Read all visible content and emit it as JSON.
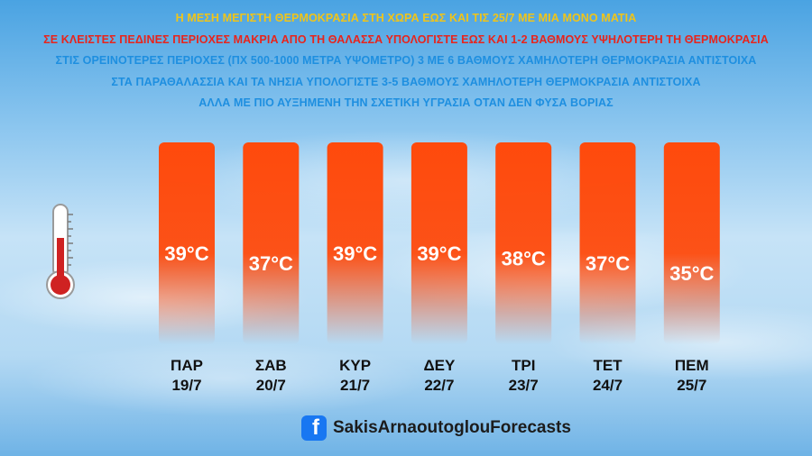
{
  "headlines": [
    "Η ΜΕΣΗ ΜΕΓΙΣΤΗ ΘΕΡΜΟΚΡΑΣΙΑ ΣΤΗ ΧΩΡΑ ΕΩΣ ΚΑΙ ΤΙΣ 25/7 ΜΕ ΜΙΑ ΜΟΝΟ ΜΑΤΙΑ",
    "ΣΕ ΚΛΕΙΣΤΕΣ ΠΕΔΙΝΕΣ ΠΕΡΙΟΧΕΣ ΜΑΚΡΙΑ ΑΠΟ ΤΗ ΘΑΛΑΣΣΑ ΥΠΟΛΟΓΙΣΤΕ ΕΩΣ ΚΑΙ 1-2 ΒΑΘΜΟΥΣ ΥΨΗΛΟΤΕΡΗ ΤΗ ΘΕΡΜΟΚΡΑΣΙΑ",
    "ΣΤΙΣ ΟΡΕΙΝΟΤΕΡΕΣ ΠΕΡΙΟΧΕΣ (ΠΧ 500-1000 ΜΕΤΡΑ ΥΨΟΜΕΤΡΟ) 3 ΜΕ 6 ΒΑΘΜΟΥΣ ΧΑΜΗΛΟΤΕΡΗ ΘΕΡΜΟΚΡΑΣΙΑ ΑΝΤΙΣΤΟΙΧΑ",
    "ΣΤΑ ΠΑΡΑΘΑΛΑΣΣΙΑ ΚΑΙ ΤΑ ΝΗΣΙΑ ΥΠΟΛΟΓΙΣΤΕ 3-5 ΒΑΘΜΟΥΣ ΧΑΜΗΛΟΤΕΡΗ ΘΕΡΜΟΚΡΑΣΙΑ ΑΝΤΙΣΤΟΙΧΑ",
    "ΑΛΛΑ ΜΕ ΠΙΟ ΑΥΞΗΜΕΝΗ ΤΗΝ ΣΧΕΤΙΚΗ ΥΓΡΑΣΙΑ ΟΤΑΝ ΔΕΝ ΦΥΣΑ ΒΟΡΙΑΣ"
  ],
  "colors": {
    "headline_yellow": "#f0c419",
    "headline_red": "#e8241c",
    "headline_blue": "#1e8fe0",
    "bar_orange": "#ff4a0c",
    "facebook_blue": "#1877f2"
  },
  "icons": {
    "thermometer": "thermometer-icon",
    "facebook": "facebook-icon"
  },
  "chart_data": {
    "type": "bar",
    "unit": "°C",
    "series": [
      {
        "values": [
          39,
          37,
          39,
          39,
          38,
          37,
          35
        ],
        "labels": [
          "39°C",
          "37°C",
          "39°C",
          "39°C",
          "38°C",
          "37°C",
          "35°C"
        ]
      }
    ],
    "categories": [
      {
        "day": "ΠΑΡ",
        "date": "19/7"
      },
      {
        "day": "ΣΑΒ",
        "date": "20/7"
      },
      {
        "day": "ΚΥΡ",
        "date": "21/7"
      },
      {
        "day": "ΔΕΥ",
        "date": "22/7"
      },
      {
        "day": "ΤΡΙ",
        "date": "23/7"
      },
      {
        "day": "ΤΕΤ",
        "date": "24/7"
      },
      {
        "day": "ΠΕΜ",
        "date": "25/7"
      }
    ],
    "legend": "none",
    "grid": false
  },
  "footer": {
    "facebook_glyph": "f",
    "handle": "SakisArnaoutoglouForecasts"
  }
}
